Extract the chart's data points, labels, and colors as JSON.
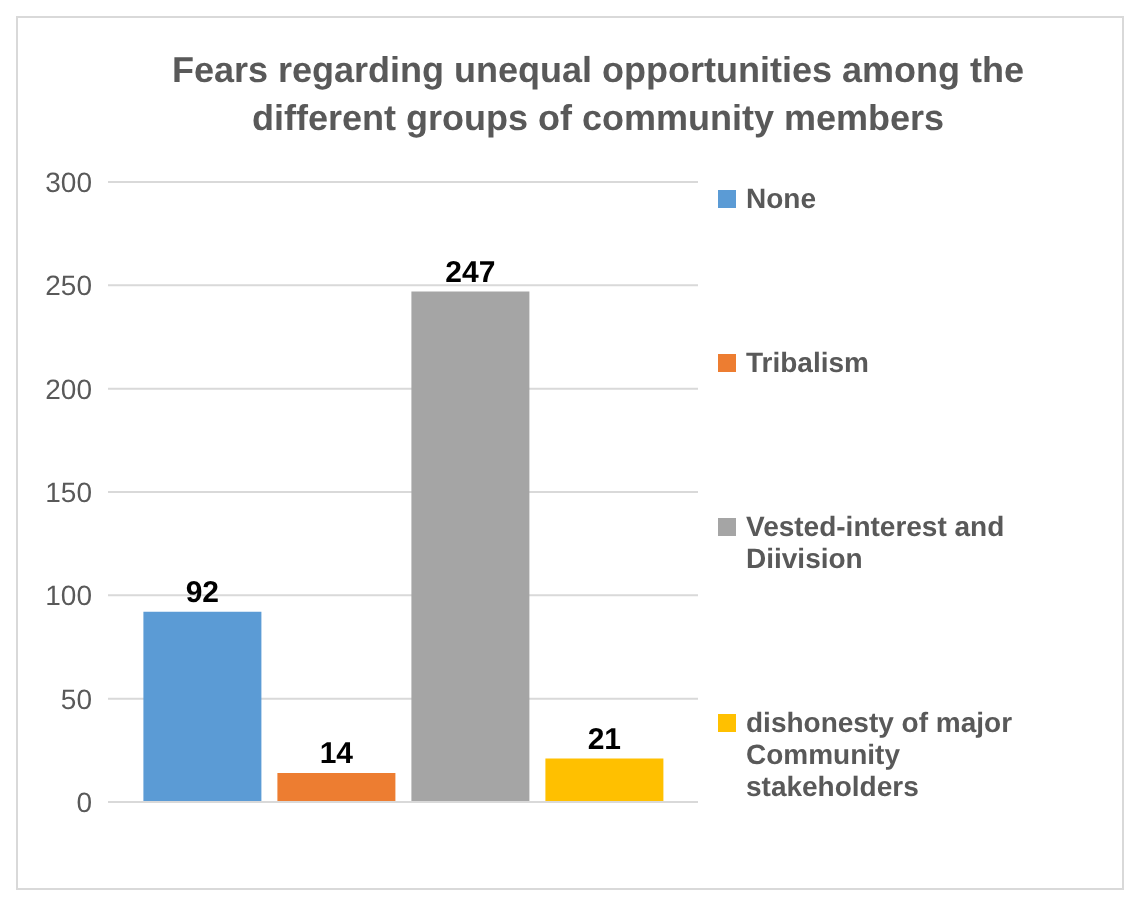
{
  "chart_data": {
    "type": "bar",
    "title": "Fears regarding unequal opportunities among the different groups of community members",
    "categories": [
      null
    ],
    "series": [
      {
        "name": "None",
        "color": "#5b9bd5",
        "values": [
          92
        ]
      },
      {
        "name": "Tribalism",
        "color": "#ed7d31",
        "values": [
          14
        ]
      },
      {
        "name": "Vested-interest and Diivision",
        "color": "#a5a5a5",
        "values": [
          247
        ]
      },
      {
        "name": "dishonesty of major Community stakeholders",
        "color": "#ffc000",
        "values": [
          21
        ]
      }
    ],
    "ylim": [
      0,
      300
    ],
    "yticks": [
      0,
      50,
      100,
      150,
      200,
      250,
      300
    ],
    "grid": "y",
    "legend": "right",
    "data_labels": true
  }
}
